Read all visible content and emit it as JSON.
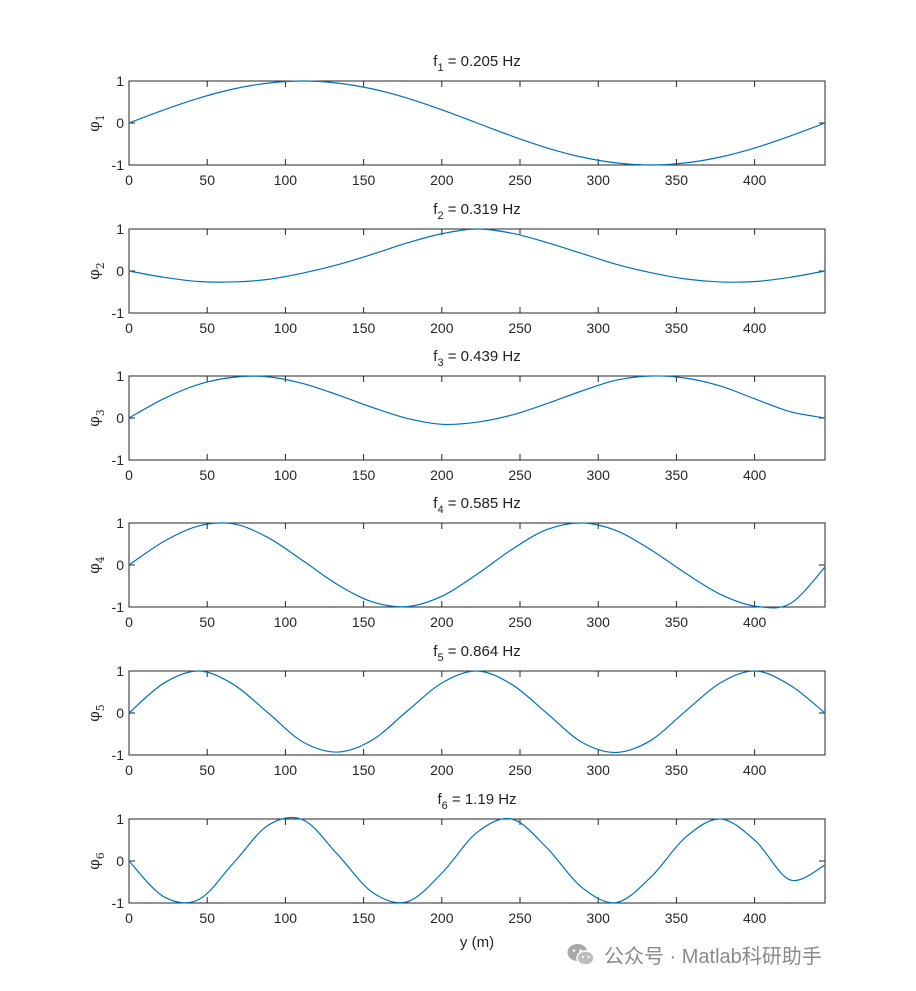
{
  "chart_data": {
    "type": "line",
    "xlim": [
      0,
      445
    ],
    "ylim": [
      -1,
      1
    ],
    "xticks": [
      0,
      50,
      100,
      150,
      200,
      250,
      300,
      350,
      400
    ],
    "yticks": [
      -1,
      0,
      1
    ],
    "xlabel": "y (m)",
    "line_color": "#0072BD",
    "x": [
      0,
      22.25,
      44.5,
      66.75,
      89,
      111.25,
      133.5,
      155.75,
      178,
      200.25,
      222.5,
      244.75,
      267,
      289.25,
      311.5,
      333.75,
      356,
      378.25,
      400.5,
      422.75,
      445
    ],
    "subplots": [
      {
        "title_base": "f",
        "title_sub": "1",
        "title_value": " = 0.205 Hz",
        "ylabel_base": "φ",
        "ylabel_sub": "1",
        "y": [
          0,
          0.31,
          0.59,
          0.81,
          0.95,
          1.0,
          0.95,
          0.81,
          0.59,
          0.31,
          0,
          -0.31,
          -0.59,
          -0.81,
          -0.95,
          -1.0,
          -0.95,
          -0.81,
          -0.59,
          -0.31,
          0
        ]
      },
      {
        "title_base": "f",
        "title_sub": "2",
        "title_value": " = 0.319 Hz",
        "ylabel_base": "φ",
        "ylabel_sub": "2",
        "y": [
          0,
          -0.15,
          -0.25,
          -0.26,
          -0.2,
          -0.05,
          0.15,
          0.4,
          0.67,
          0.89,
          1.0,
          0.9,
          0.68,
          0.42,
          0.16,
          -0.04,
          -0.19,
          -0.26,
          -0.25,
          -0.15,
          0
        ]
      },
      {
        "title_base": "f",
        "title_sub": "3",
        "title_value": " = 0.439 Hz",
        "ylabel_base": "φ",
        "ylabel_sub": "3",
        "y": [
          0,
          0.46,
          0.8,
          0.97,
          0.98,
          0.82,
          0.55,
          0.25,
          -0.01,
          -0.15,
          -0.1,
          0.07,
          0.34,
          0.64,
          0.9,
          1.0,
          0.95,
          0.76,
          0.45,
          0.15,
          0
        ]
      },
      {
        "title_base": "f",
        "title_sub": "4",
        "title_value": " = 0.585 Hz",
        "ylabel_base": "φ",
        "ylabel_sub": "4",
        "y": [
          0,
          0.56,
          0.93,
          0.98,
          0.65,
          0.1,
          -0.47,
          -0.88,
          -0.99,
          -0.74,
          -0.22,
          0.37,
          0.84,
          1.0,
          0.82,
          0.36,
          -0.2,
          -0.7,
          -0.98,
          -0.92,
          -0.05
        ]
      },
      {
        "title_base": "f",
        "title_sub": "5",
        "title_value": " = 0.864 Hz",
        "ylabel_base": "φ",
        "ylabel_sub": "5",
        "y": [
          0,
          0.71,
          1.0,
          0.68,
          0.0,
          -0.69,
          -0.93,
          -0.64,
          0.05,
          0.72,
          1.0,
          0.68,
          0.0,
          -0.69,
          -0.94,
          -0.65,
          0.05,
          0.72,
          1.0,
          0.66,
          0
        ]
      },
      {
        "title_base": "f",
        "title_sub": "6",
        "title_value": " = 1.19 Hz",
        "ylabel_base": "φ",
        "ylabel_sub": "6",
        "y": [
          0,
          -0.85,
          -0.92,
          -0.05,
          0.85,
          0.98,
          0.15,
          -0.75,
          -0.97,
          -0.28,
          0.68,
          1.0,
          0.32,
          -0.62,
          -0.99,
          -0.38,
          0.57,
          1.0,
          0.48,
          -0.45,
          -0.1
        ]
      }
    ]
  },
  "watermark": {
    "text": "公众号 · Matlab科研助手",
    "icon": "wechat-icon",
    "color": "#8a8a8a"
  }
}
